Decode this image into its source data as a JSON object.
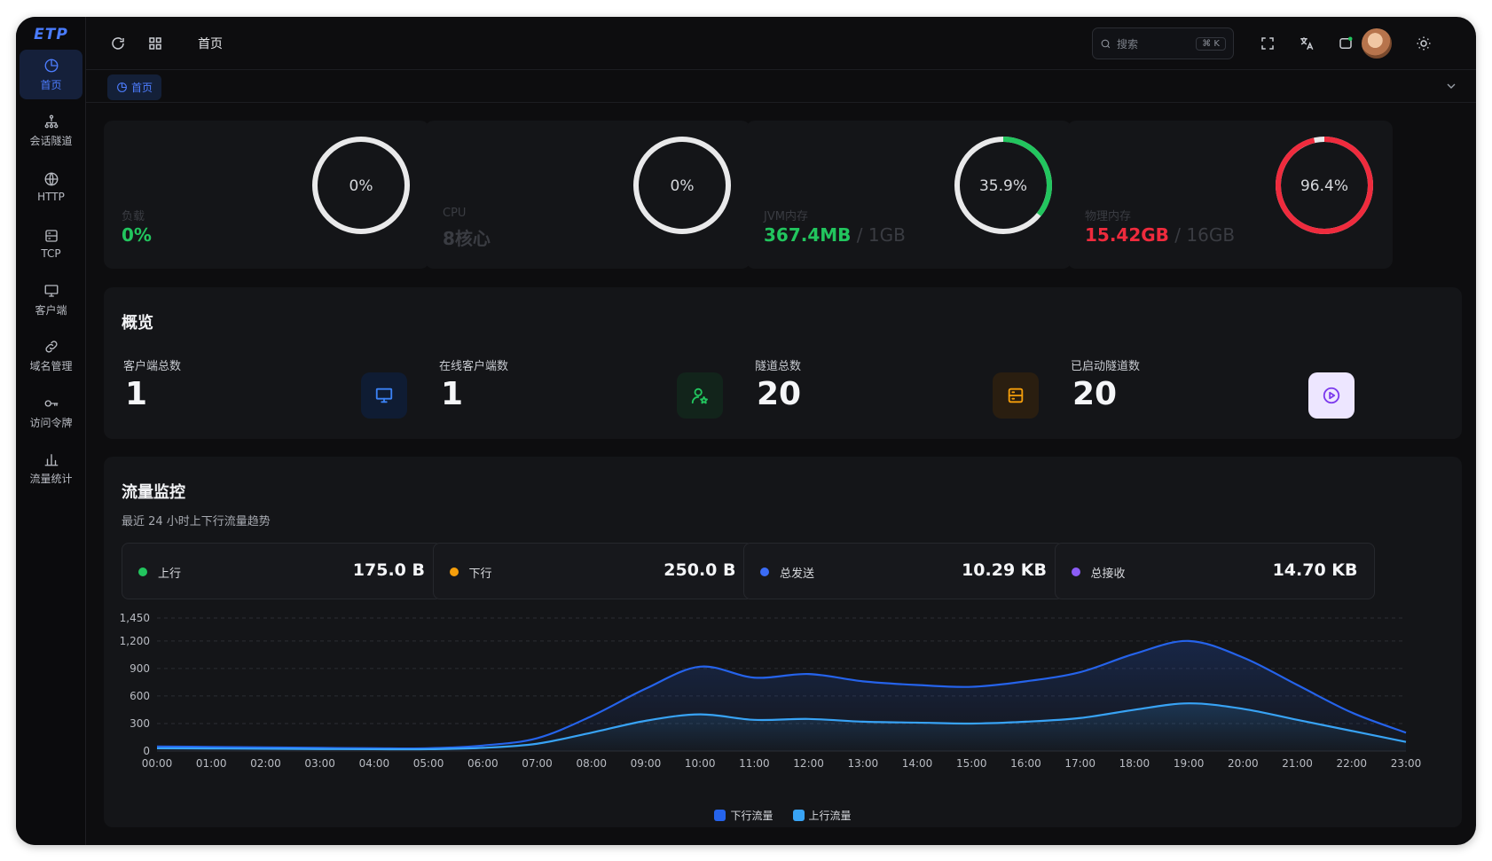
{
  "app": {
    "logo": "ETP"
  },
  "sidebar": {
    "items": [
      {
        "label": "首页",
        "icon": "dashboard-icon",
        "active": true
      },
      {
        "label": "会话隧道",
        "icon": "network-icon"
      },
      {
        "label": "HTTP",
        "icon": "globe-icon"
      },
      {
        "label": "TCP",
        "icon": "server-icon"
      },
      {
        "label": "客户端",
        "icon": "monitor-icon"
      },
      {
        "label": "域名管理",
        "icon": "link-icon"
      },
      {
        "label": "访问令牌",
        "icon": "key-icon"
      },
      {
        "label": "流量统计",
        "icon": "bar-chart-icon"
      }
    ]
  },
  "header": {
    "breadcrumb": "首页",
    "search": {
      "placeholder": "搜索",
      "shortcut": "⌘ K"
    }
  },
  "tabs": [
    {
      "label": "首页",
      "icon": "dashboard-icon"
    }
  ],
  "gauges": [
    {
      "label": "负载",
      "value": "0%",
      "rest": "",
      "percent": 0,
      "color": "#22c55e",
      "center_text": "0%"
    },
    {
      "label": "CPU",
      "value": "8核心",
      "rest": "",
      "percent": 0,
      "color": "#3a3c42",
      "center_text": "0%"
    },
    {
      "label": "JVM内存",
      "value": "367.4MB",
      "rest": " / 1GB",
      "percent": 35.9,
      "color": "#22c55e",
      "center_text": "35.9%"
    },
    {
      "label": "物理内存",
      "value": "15.42GB",
      "rest": " / 16GB",
      "percent": 96.4,
      "color": "#ef2b3d",
      "center_text": "96.4%"
    }
  ],
  "overview": {
    "title": "概览",
    "stats": [
      {
        "label": "客户端总数",
        "value": "1",
        "icon": "monitor-icon",
        "icon_color": "#3b82f6",
        "icon_bg": "#0f1c33"
      },
      {
        "label": "在线客户端数",
        "value": "1",
        "icon": "user-star-icon",
        "icon_color": "#22c55e",
        "icon_bg": "#12241b"
      },
      {
        "label": "隧道总数",
        "value": "20",
        "icon": "server-icon",
        "icon_color": "#f59e0b",
        "icon_bg": "#2a1e10"
      },
      {
        "label": "已启动隧道数",
        "value": "20",
        "icon": "play-circle-icon",
        "icon_color": "#7c3aed",
        "icon_bg": "#ede6ff"
      }
    ]
  },
  "traffic": {
    "title": "流量监控",
    "subtitle": "最近 24 小时上下行流量趋势",
    "boxes": [
      {
        "label": "上行",
        "value": "175.0 B",
        "dot": "#22c55e"
      },
      {
        "label": "下行",
        "value": "250.0 B",
        "dot": "#f59e0b"
      },
      {
        "label": "总发送",
        "value": "10.29 KB",
        "dot": "#3b6cf6"
      },
      {
        "label": "总接收",
        "value": "14.70 KB",
        "dot": "#8b5cf6"
      }
    ]
  },
  "chart_data": {
    "type": "area",
    "x": [
      "00:00",
      "01:00",
      "02:00",
      "03:00",
      "04:00",
      "05:00",
      "06:00",
      "07:00",
      "08:00",
      "09:00",
      "10:00",
      "11:00",
      "12:00",
      "13:00",
      "14:00",
      "15:00",
      "16:00",
      "17:00",
      "18:00",
      "19:00",
      "20:00",
      "21:00",
      "22:00",
      "23:00"
    ],
    "series": [
      {
        "name": "下行流量",
        "color": "#2563eb",
        "values": [
          50,
          45,
          40,
          35,
          30,
          30,
          60,
          140,
          380,
          680,
          920,
          800,
          840,
          760,
          720,
          700,
          760,
          860,
          1060,
          1200,
          1020,
          720,
          420,
          200
        ]
      },
      {
        "name": "上行流量",
        "color": "#38a3f5",
        "values": [
          30,
          28,
          25,
          22,
          20,
          20,
          35,
          80,
          200,
          330,
          400,
          340,
          350,
          320,
          310,
          300,
          320,
          360,
          450,
          520,
          460,
          340,
          220,
          100
        ]
      }
    ],
    "yticks": [
      0,
      300,
      600,
      900,
      1200,
      1450
    ],
    "ylim": [
      0,
      1450
    ],
    "grid": true,
    "legend": "bottom"
  }
}
